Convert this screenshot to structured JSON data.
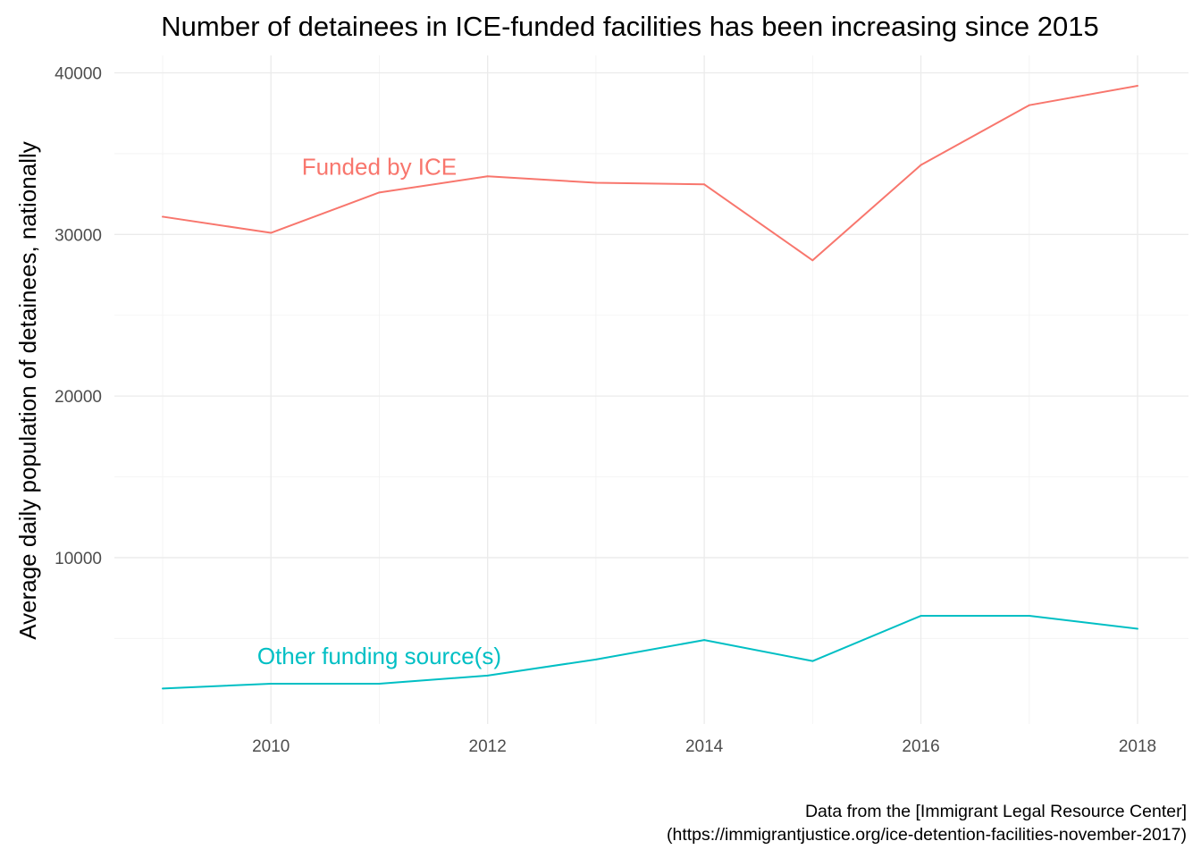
{
  "chart_data": {
    "type": "line",
    "title": "Number of detainees in ICE-funded facilities has been increasing since 2015",
    "xlabel": "",
    "ylabel": "Average daily population of detainees, nationally",
    "caption": [
      "Data from the [Immigrant Legal Resource Center]",
      "(https://immigrantjustice.org/ice-detention-facilities-november-2017)"
    ],
    "x": [
      2009,
      2010,
      2011,
      2012,
      2013,
      2014,
      2015,
      2016,
      2017,
      2018
    ],
    "x_ticks": [
      2010,
      2012,
      2014,
      2016,
      2018
    ],
    "y_ticks": [
      10000,
      20000,
      30000,
      40000
    ],
    "xlim": [
      2009,
      2018
    ],
    "ylim": [
      1700,
      39200
    ],
    "grid": true,
    "legend": "none (direct labels)",
    "series": [
      {
        "name": "Funded by ICE",
        "color": "#F8766D",
        "values": [
          31100,
          30100,
          32600,
          33600,
          33200,
          33100,
          28400,
          34300,
          38000,
          39200
        ],
        "label_x": 2011,
        "label_y": 34200
      },
      {
        "name": "Other funding source(s)",
        "color": "#00BFC4",
        "values": [
          1900,
          2200,
          2200,
          2700,
          3700,
          4900,
          3600,
          6400,
          6400,
          5600
        ],
        "label_x": 2011,
        "label_y": 3900
      }
    ]
  }
}
